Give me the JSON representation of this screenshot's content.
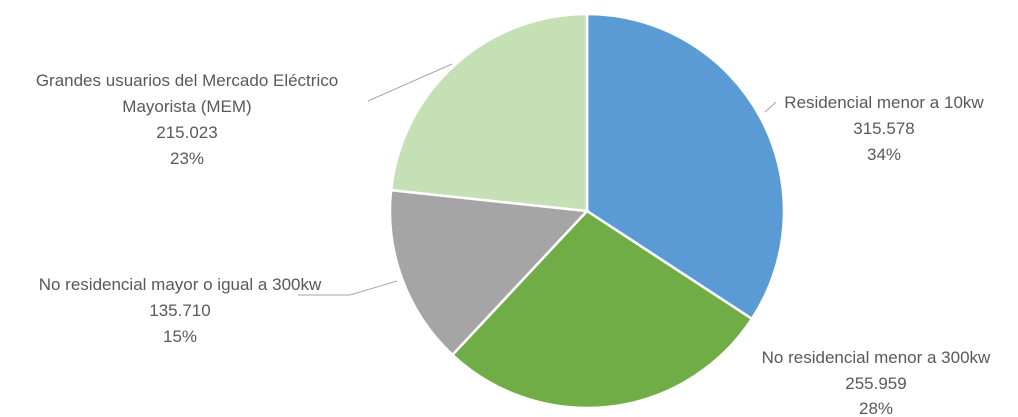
{
  "chart_data": {
    "type": "pie",
    "title": "",
    "slices": [
      {
        "name": "Residencial menor a 10kw",
        "value": 315578,
        "value_label": "315.578",
        "percent_label": "34%",
        "color": "#5b9bd5"
      },
      {
        "name": "No residencial menor a 300kw",
        "value": 255959,
        "value_label": "255.959",
        "percent_label": "28%",
        "color": "#70ad47"
      },
      {
        "name": "No residencial mayor o igual a 300kw",
        "value": 135710,
        "value_label": "135.710",
        "percent_label": "15%",
        "color": "#a5a5a5"
      },
      {
        "name": "Grandes usuarios del Mercado Eléctrico Mayorista (MEM)",
        "name_lines": [
          "Grandes usuarios del Mercado Eléctrico",
          "Mayorista (MEM)"
        ],
        "value": 215023,
        "value_label": "215.023",
        "percent_label": "23%",
        "color": "#c5e0b4"
      }
    ],
    "start_angle_deg": 0,
    "direction": "clockwise",
    "legend": "none",
    "data_labels": "outside with leader lines"
  }
}
